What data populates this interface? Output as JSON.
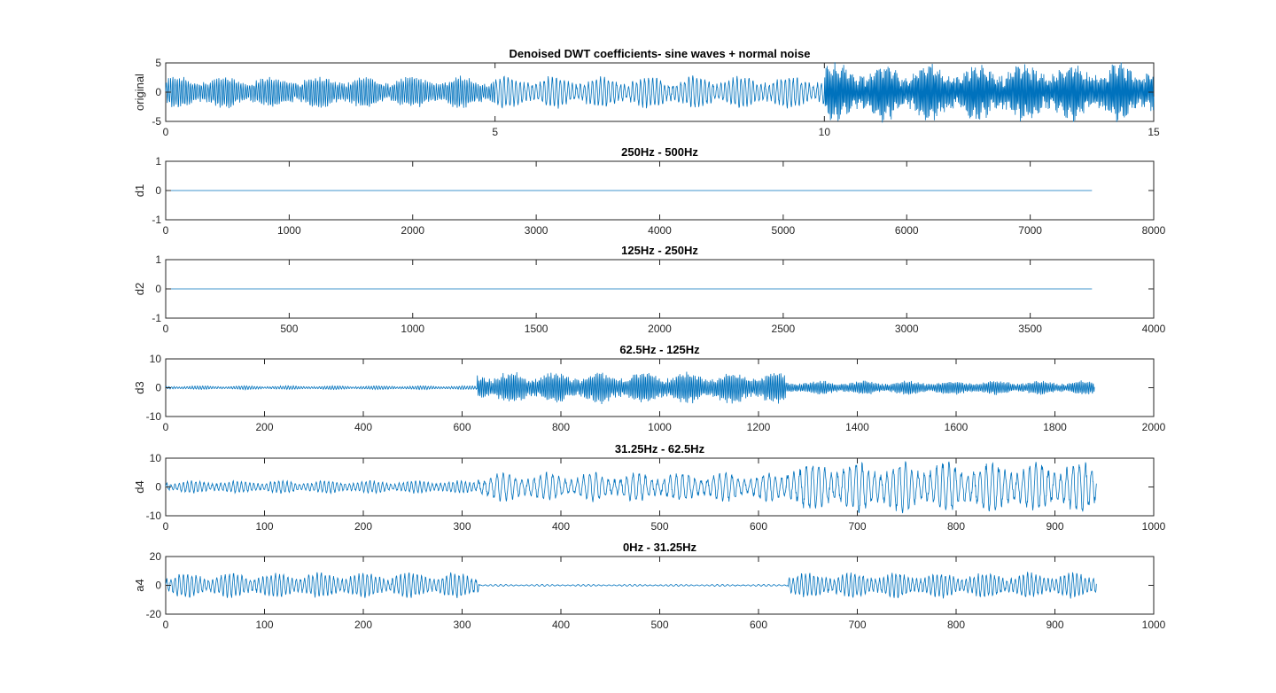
{
  "figure_title": "Denoised DWT coefficients- sine waves + normal noise",
  "colors": {
    "line": "#0072bd",
    "axis": "#262626",
    "background": "#ffffff"
  },
  "chart_data": [
    {
      "type": "line",
      "title": "Denoised DWT coefficients- sine waves + normal noise",
      "ylabel": "original",
      "xlim": [
        0,
        15
      ],
      "ylim": [
        -5,
        5
      ],
      "xticks": [
        0,
        5,
        10,
        15
      ],
      "yticks": [
        -5,
        0,
        5
      ],
      "grid": false,
      "series": [
        {
          "segments": [
            {
              "x_start": 0,
              "x_end": 5,
              "amplitude": 2.5,
              "cycles": 150
            },
            {
              "x_start": 5,
              "x_end": 10,
              "amplitude": 2.5,
              "cycles": 900
            },
            {
              "x_start": 10,
              "x_end": 15,
              "amplitude": 4.5,
              "cycles": 260
            }
          ]
        }
      ]
    },
    {
      "type": "line",
      "title": "250Hz - 500Hz",
      "ylabel": "d1",
      "xlim": [
        0,
        8000
      ],
      "ylim": [
        -1,
        1
      ],
      "xticks": [
        0,
        1000,
        2000,
        3000,
        4000,
        5000,
        6000,
        7000,
        8000
      ],
      "yticks": [
        -1,
        0,
        1
      ],
      "grid": false,
      "series": [
        {
          "segments": [
            {
              "x_start": 0,
              "x_end": 7500,
              "amplitude": 0,
              "cycles": 0
            }
          ]
        }
      ]
    },
    {
      "type": "line",
      "title": "125Hz - 250Hz",
      "ylabel": "d2",
      "xlim": [
        0,
        4000
      ],
      "ylim": [
        -1,
        1
      ],
      "xticks": [
        0,
        500,
        1000,
        1500,
        2000,
        2500,
        3000,
        3500,
        4000
      ],
      "yticks": [
        -1,
        0,
        1
      ],
      "grid": false,
      "series": [
        {
          "segments": [
            {
              "x_start": 0,
              "x_end": 3750,
              "amplitude": 0,
              "cycles": 0
            }
          ]
        }
      ]
    },
    {
      "type": "line",
      "title": "62.5Hz - 125Hz",
      "ylabel": "d3",
      "xlim": [
        0,
        2000
      ],
      "ylim": [
        -10,
        10
      ],
      "xticks": [
        0,
        200,
        400,
        600,
        800,
        1000,
        1200,
        1400,
        1600,
        1800,
        2000
      ],
      "yticks": [
        -10,
        0,
        10
      ],
      "grid": false,
      "series": [
        {
          "segments": [
            {
              "x_start": 0,
              "x_end": 630,
              "amplitude": 0.6,
              "cycles": 120
            },
            {
              "x_start": 630,
              "x_end": 1255,
              "amplitude": 5,
              "cycles": 180
            },
            {
              "x_start": 1255,
              "x_end": 1880,
              "amplitude": 2.2,
              "cycles": 180
            }
          ]
        }
      ]
    },
    {
      "type": "line",
      "title": "31.25Hz - 62.5Hz",
      "ylabel": "d4",
      "xlim": [
        0,
        1000
      ],
      "ylim": [
        -10,
        10
      ],
      "xticks": [
        0,
        100,
        200,
        300,
        400,
        500,
        600,
        700,
        800,
        900,
        1000
      ],
      "yticks": [
        -10,
        0,
        10
      ],
      "grid": false,
      "series": [
        {
          "segments": [
            {
              "x_start": 0,
              "x_end": 315,
              "amplitude": 2,
              "cycles": 75
            },
            {
              "x_start": 315,
              "x_end": 628,
              "amplitude": 4.5,
              "cycles": 50
            },
            {
              "x_start": 628,
              "x_end": 942,
              "amplitude": 8,
              "cycles": 50
            }
          ]
        }
      ]
    },
    {
      "type": "line",
      "title": "0Hz - 31.25Hz",
      "ylabel": "a4",
      "xlim": [
        0,
        1000
      ],
      "ylim": [
        -20,
        20
      ],
      "xticks": [
        0,
        100,
        200,
        300,
        400,
        500,
        600,
        700,
        800,
        900,
        1000
      ],
      "yticks": [
        -20,
        0,
        20
      ],
      "grid": false,
      "series": [
        {
          "segments": [
            {
              "x_start": 0,
              "x_end": 317,
              "amplitude": 8,
              "cycles": 75
            },
            {
              "x_start": 317,
              "x_end": 630,
              "amplitude": 0.6,
              "cycles": 60
            },
            {
              "x_start": 630,
              "x_end": 942,
              "amplitude": 8,
              "cycles": 75
            }
          ]
        }
      ]
    }
  ]
}
